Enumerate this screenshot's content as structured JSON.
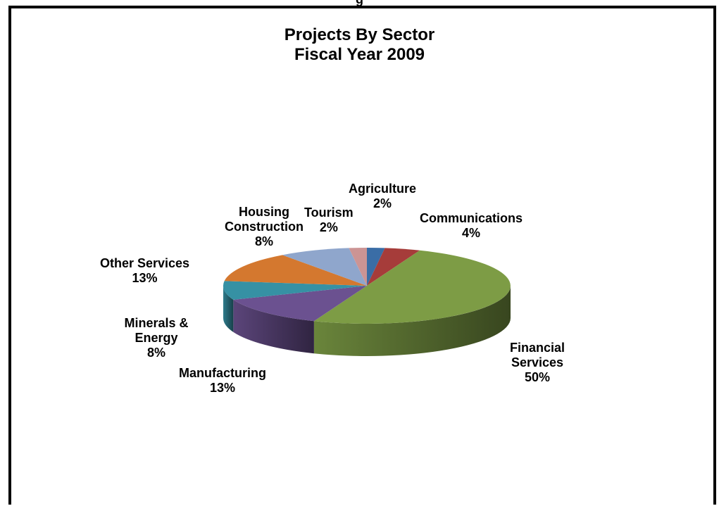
{
  "header": {
    "partial_text": "g"
  },
  "chart_data": {
    "type": "pie",
    "title": "Projects By Sector",
    "subtitle": "Fiscal Year 2009",
    "slices": [
      {
        "label": "Agriculture",
        "percent_label": "2%",
        "value": 2,
        "color": "#3A6DA6"
      },
      {
        "label": "Communications",
        "percent_label": "4%",
        "value": 4,
        "color": "#A63C3A"
      },
      {
        "label": "Financial Services",
        "percent_label": "50%",
        "value": 50,
        "color": "#7D9C45"
      },
      {
        "label": "Manufacturing",
        "percent_label": "13%",
        "value": 13,
        "color": "#6B5190"
      },
      {
        "label": "Minerals & Energy",
        "percent_label": "8%",
        "value": 8,
        "color": "#3691A4"
      },
      {
        "label": "Other Services",
        "percent_label": "13%",
        "value": 13,
        "color": "#D4782F"
      },
      {
        "label": "Housing Construction",
        "percent_label": "8%",
        "value": 8,
        "color": "#8FA6CC"
      },
      {
        "label": "Tourism",
        "percent_label": "2%",
        "value": 2,
        "color": "#CC9494"
      }
    ],
    "three_d": true,
    "legend": "none"
  }
}
